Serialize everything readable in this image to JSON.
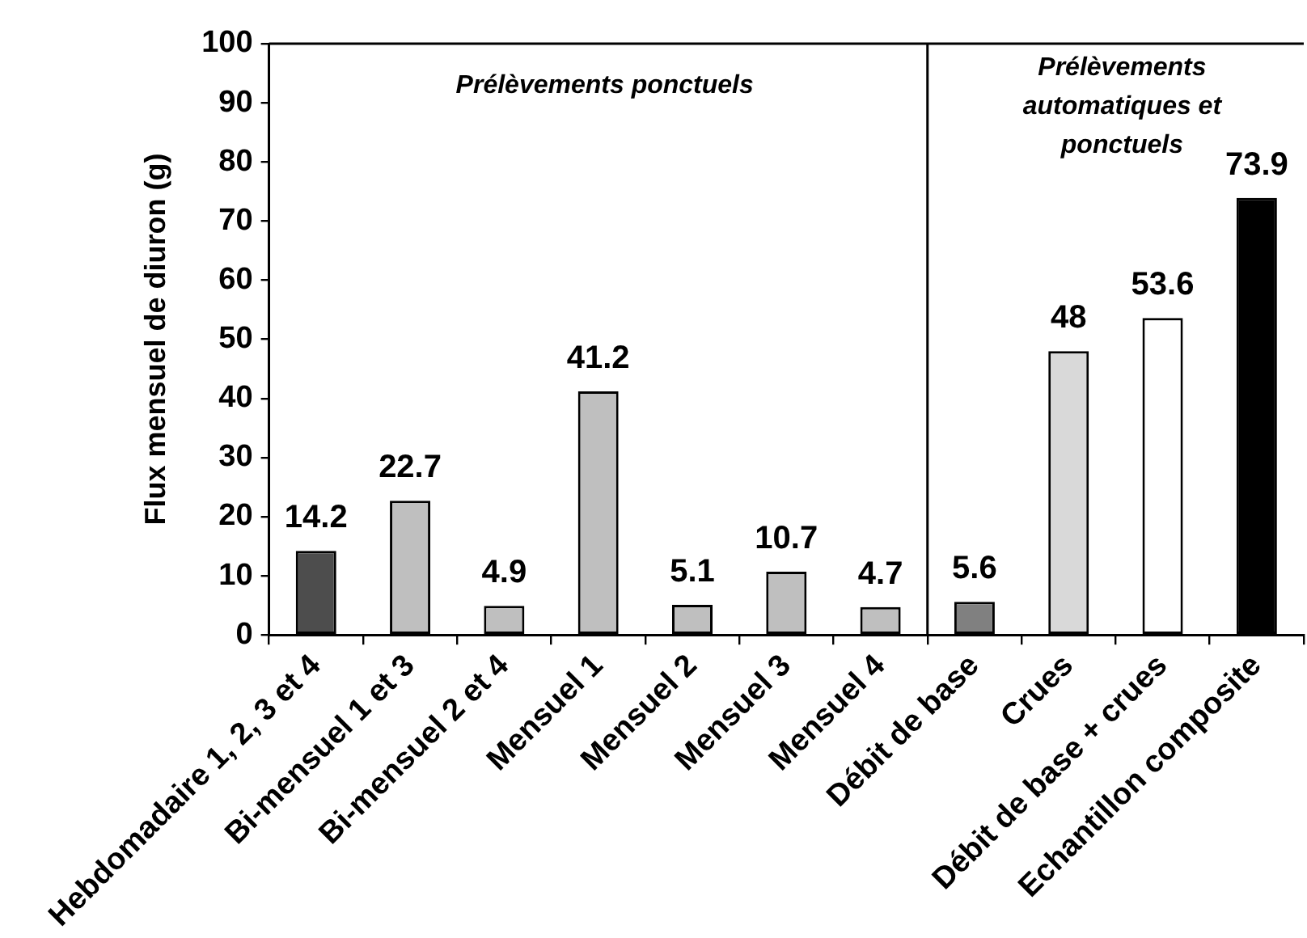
{
  "chart_data": {
    "type": "bar",
    "ylabel": "Flux mensuel de diuron (g)",
    "categories": [
      "Hebdomadaire 1, 2, 3 et 4",
      "Bi-mensuel 1 et 3",
      "Bi-mensuel 2 et 4",
      "Mensuel 1",
      "Mensuel 2",
      "Mensuel 3",
      "Mensuel 4",
      "Débit de base",
      "Crues",
      "Débit de base + crues",
      "Echantillon composite"
    ],
    "values": [
      14.2,
      22.7,
      4.9,
      41.2,
      5.1,
      10.7,
      4.7,
      5.6,
      48,
      53.6,
      73.9
    ],
    "colors": [
      "#4d4d4d",
      "#bfbfbf",
      "#bfbfbf",
      "#bfbfbf",
      "#bfbfbf",
      "#bfbfbf",
      "#bfbfbf",
      "#808080",
      "#d9d9d9",
      "#ffffff",
      "#000000"
    ],
    "ylim": [
      0,
      100
    ],
    "yticks": [
      0,
      10,
      20,
      30,
      40,
      50,
      60,
      70,
      80,
      90,
      100
    ],
    "grid": false,
    "legend": false,
    "data_labels": true,
    "annotations": [
      "Prélèvements ponctuels",
      "Prélèvements automatiques et ponctuels"
    ]
  }
}
